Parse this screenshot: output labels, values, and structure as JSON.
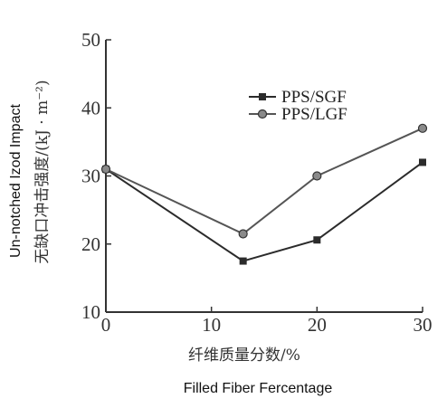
{
  "chart_data": {
    "type": "line",
    "title": "",
    "xlabel": "纤维质量分数/%",
    "xlabel_en": "Filled Fiber Fercentage",
    "ylabel": "无缺口冲击强度/(kJ · m⁻²)",
    "ylabel_en": "Un-notched Izod Impact",
    "x": [
      0,
      13,
      20,
      30
    ],
    "xlim": [
      0,
      30
    ],
    "ylim": [
      10,
      50
    ],
    "xticks": [
      0,
      10,
      20,
      30
    ],
    "yticks": [
      10,
      20,
      30,
      40,
      50
    ],
    "grid": false,
    "legend_position": "top-right",
    "series": [
      {
        "name": "PPS/SGF",
        "marker": "square",
        "color": "#2b2b2b",
        "values": [
          31,
          17.5,
          20.6,
          32
        ]
      },
      {
        "name": "PPS/LGF",
        "marker": "circle",
        "color": "#555555",
        "values": [
          31,
          21.5,
          30,
          37
        ]
      }
    ]
  }
}
